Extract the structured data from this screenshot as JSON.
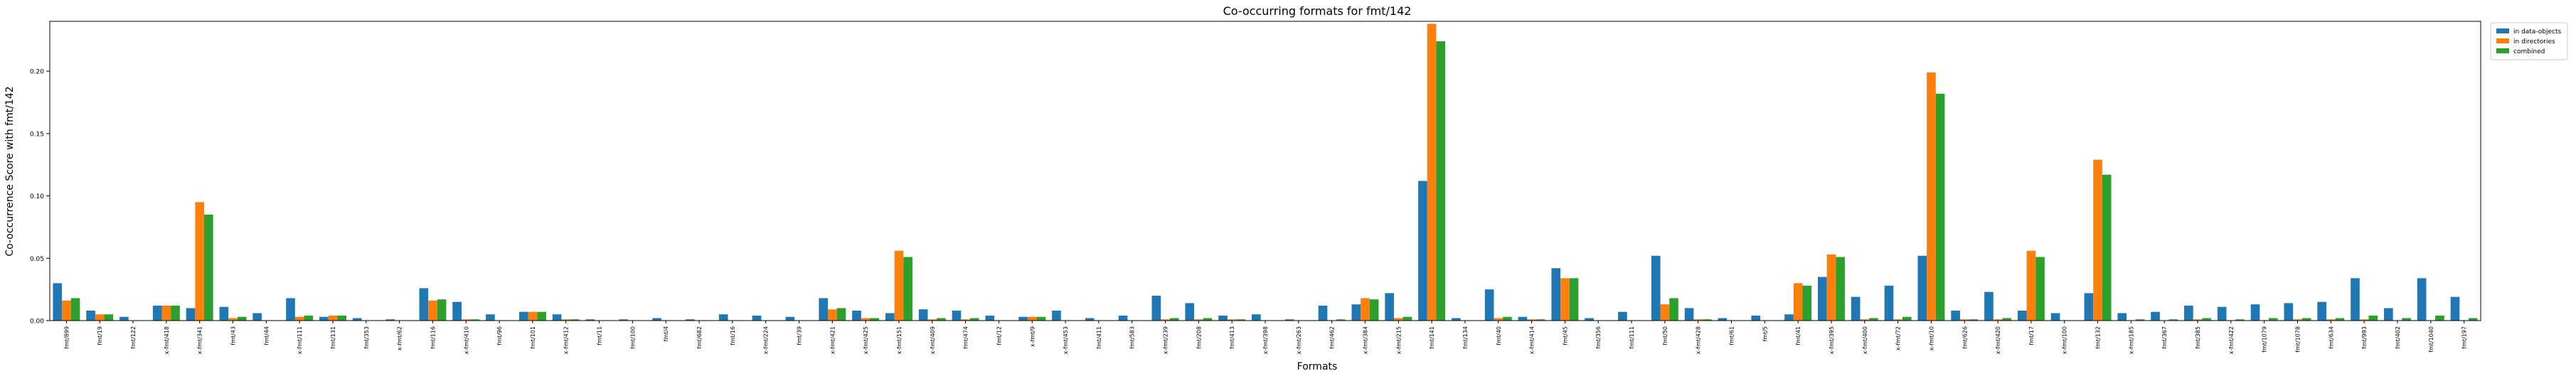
{
  "chart_data": {
    "type": "bar",
    "title": "Co-occurring formats for fmt/142",
    "xlabel": "Formats",
    "ylabel": "Co-occurrence Score with fmt/142",
    "ylim": [
      0,
      0.24
    ],
    "yticks": [
      "0.00",
      "0.05",
      "0.10",
      "0.15",
      "0.20"
    ],
    "ytick_values": [
      0,
      0.05,
      0.1,
      0.15,
      0.2
    ],
    "grid": false,
    "legend_position": "top-right (outside plot)",
    "colors": {
      "in data-objects": "#1f77b4",
      "in directories": "#ff7f0e",
      "combined": "#2ca02c"
    },
    "categories": [
      "fmt/899",
      "fmt/19",
      "fmt/122",
      "x-fmt/418",
      "x-fmt/341",
      "fmt/43",
      "fmt/44",
      "x-fmt/111",
      "fmt/131",
      "fmt/353",
      "x-fmt/62",
      "fmt/116",
      "x-fmt/410",
      "fmt/96",
      "fmt/101",
      "x-fmt/412",
      "fmt/11",
      "fmt/100",
      "fmt/4",
      "fmt/682",
      "fmt/16",
      "x-fmt/224",
      "fmt/39",
      "x-fmt/421",
      "x-fmt/425",
      "x-fmt/151",
      "x-fmt/409",
      "fmt/474",
      "fmt/12",
      "x-fmt/9",
      "x-fmt/453",
      "fmt/411",
      "fmt/583",
      "x-fmt/239",
      "fmt/208",
      "fmt/413",
      "x-fmt/398",
      "x-fmt/263",
      "fmt/462",
      "x-fmt/384",
      "x-fmt/215",
      "fmt/141",
      "fmt/134",
      "fmt/40",
      "x-fmt/414",
      "fmt/45",
      "fmt/356",
      "fmt/111",
      "fmt/50",
      "x-fmt/428",
      "fmt/61",
      "fmt/5",
      "fmt/41",
      "x-fmt/395",
      "x-fmt/400",
      "x-fmt/72",
      "x-fmt/10",
      "fmt/626",
      "x-fmt/420",
      "fmt/17",
      "x-fmt/100",
      "fmt/132",
      "x-fmt/185",
      "fmt/367",
      "fmt/385",
      "x-fmt/422",
      "fmt/1079",
      "fmt/1078",
      "fmt/634",
      "fmt/993",
      "fmt/402",
      "fmt/1040",
      "fmt/197"
    ],
    "series": [
      {
        "name": "in data-objects",
        "values": [
          0.03,
          0.008,
          0.003,
          0.012,
          0.01,
          0.011,
          0.006,
          0.018,
          0.003,
          0.002,
          0.001,
          0.026,
          0.015,
          0.005,
          0.007,
          0.005,
          0.001,
          0.001,
          0.002,
          0.001,
          0.005,
          0.004,
          0.003,
          0.018,
          0.008,
          0.006,
          0.009,
          0.008,
          0.004,
          0.003,
          0.008,
          0.002,
          0.004,
          0.02,
          0.014,
          0.004,
          0.005,
          0.001,
          0.012,
          0.013,
          0.022,
          0.112,
          0.002,
          0.025,
          0.003,
          0.042,
          0.002,
          0.007,
          0.052,
          0.01,
          0.002,
          0.004,
          0.005,
          0.035,
          0.019,
          0.028,
          0.052,
          0.008,
          0.023,
          0.008,
          0.006,
          0.022,
          0.006,
          0.007,
          0.012,
          0.011,
          0.013,
          0.014,
          0.015,
          0.034,
          0.01,
          0.034,
          0.019
        ]
      },
      {
        "name": "in directories",
        "values": [
          0.016,
          0.005,
          0.0,
          0.012,
          0.095,
          0.002,
          0.0,
          0.003,
          0.004,
          0.0,
          0.0,
          0.016,
          0.001,
          0.0,
          0.007,
          0.001,
          0.0,
          0.0,
          0.0,
          0.0,
          0.0,
          0.0,
          0.0,
          0.009,
          0.002,
          0.056,
          0.001,
          0.001,
          0.0,
          0.003,
          0.0,
          0.0,
          0.0,
          0.001,
          0.001,
          0.001,
          0.0,
          0.0,
          0.0,
          0.018,
          0.002,
          0.238,
          0.0,
          0.002,
          0.001,
          0.034,
          0.0,
          0.0,
          0.013,
          0.001,
          0.0,
          0.0,
          0.03,
          0.053,
          0.001,
          0.001,
          0.199,
          0.001,
          0.001,
          0.056,
          0.0,
          0.129,
          0.0,
          0.0,
          0.001,
          0.0,
          0.0,
          0.001,
          0.001,
          0.001,
          0.0,
          0.0,
          0.0
        ]
      },
      {
        "name": "combined",
        "values": [
          0.018,
          0.005,
          0.0,
          0.012,
          0.085,
          0.003,
          0.0,
          0.004,
          0.004,
          0.0,
          0.0,
          0.017,
          0.001,
          0.0,
          0.007,
          0.001,
          0.0,
          0.0,
          0.0,
          0.0,
          0.0,
          0.0,
          0.0,
          0.01,
          0.002,
          0.051,
          0.002,
          0.002,
          0.0,
          0.003,
          0.0,
          0.0,
          0.0,
          0.002,
          0.002,
          0.001,
          0.0,
          0.0,
          0.001,
          0.017,
          0.003,
          0.224,
          0.0,
          0.003,
          0.001,
          0.034,
          0.0,
          0.0,
          0.018,
          0.001,
          0.0,
          0.0,
          0.028,
          0.051,
          0.002,
          0.003,
          0.182,
          0.001,
          0.002,
          0.051,
          0.0,
          0.117,
          0.001,
          0.001,
          0.002,
          0.001,
          0.002,
          0.002,
          0.002,
          0.004,
          0.002,
          0.004,
          0.002
        ]
      }
    ]
  }
}
